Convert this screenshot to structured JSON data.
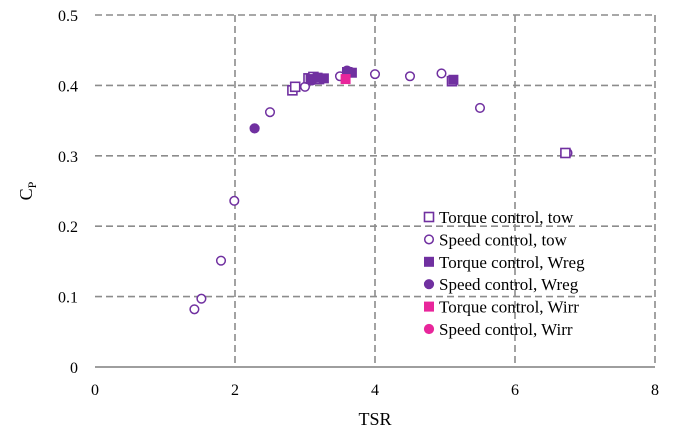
{
  "chart_data": {
    "type": "scatter",
    "xlabel": "TSR",
    "ylabel": "C",
    "ylabel_subscript": "P",
    "xlim": [
      0,
      8
    ],
    "ylim": [
      0,
      0.5
    ],
    "xticks": [
      0,
      2,
      4,
      6,
      8
    ],
    "yticks": [
      0,
      0.1,
      0.2,
      0.3,
      0.4,
      0.5
    ],
    "xtick_labels": [
      "0",
      "2",
      "4",
      "6",
      "8"
    ],
    "ytick_labels": [
      "0",
      "0.1",
      "0.2",
      "0.3",
      "0.4",
      "0.5"
    ],
    "grid": "dashed",
    "legend_position": "bottom-right",
    "series": [
      {
        "name": "Torque control, tow",
        "marker": "square-open",
        "color": "#7030A0",
        "points": [
          [
            2.82,
            0.393
          ],
          [
            2.86,
            0.398
          ],
          [
            3.05,
            0.41
          ],
          [
            3.12,
            0.412
          ],
          [
            3.2,
            0.409
          ],
          [
            5.1,
            0.406
          ],
          [
            6.72,
            0.304
          ]
        ]
      },
      {
        "name": "Speed control, tow",
        "marker": "circle-open",
        "color": "#7030A0",
        "points": [
          [
            1.42,
            0.082
          ],
          [
            1.52,
            0.097
          ],
          [
            1.8,
            0.151
          ],
          [
            1.99,
            0.236
          ],
          [
            2.5,
            0.362
          ],
          [
            3.0,
            0.398
          ],
          [
            3.5,
            0.413
          ],
          [
            4.0,
            0.416
          ],
          [
            4.5,
            0.413
          ],
          [
            4.95,
            0.417
          ],
          [
            5.5,
            0.368
          ],
          [
            6.75,
            0.304
          ]
        ]
      },
      {
        "name": "Torque control, Wreg",
        "marker": "square-filled",
        "color": "#7030A0",
        "points": [
          [
            3.08,
            0.409
          ],
          [
            3.18,
            0.411
          ],
          [
            3.27,
            0.41
          ],
          [
            3.6,
            0.419
          ],
          [
            3.67,
            0.418
          ],
          [
            5.12,
            0.408
          ]
        ]
      },
      {
        "name": "Speed control, Wreg",
        "marker": "circle-filled",
        "color": "#7030A0",
        "points": [
          [
            2.28,
            0.339
          ],
          [
            3.1,
            0.407
          ],
          [
            3.6,
            0.421
          ],
          [
            3.65,
            0.419
          ]
        ]
      },
      {
        "name": "Torque control, Wirr",
        "marker": "square-filled",
        "color": "#E8269B",
        "points": [
          [
            3.58,
            0.409
          ]
        ]
      },
      {
        "name": "Speed control, Wirr",
        "marker": "circle-filled",
        "color": "#E8269B",
        "points": []
      }
    ]
  }
}
